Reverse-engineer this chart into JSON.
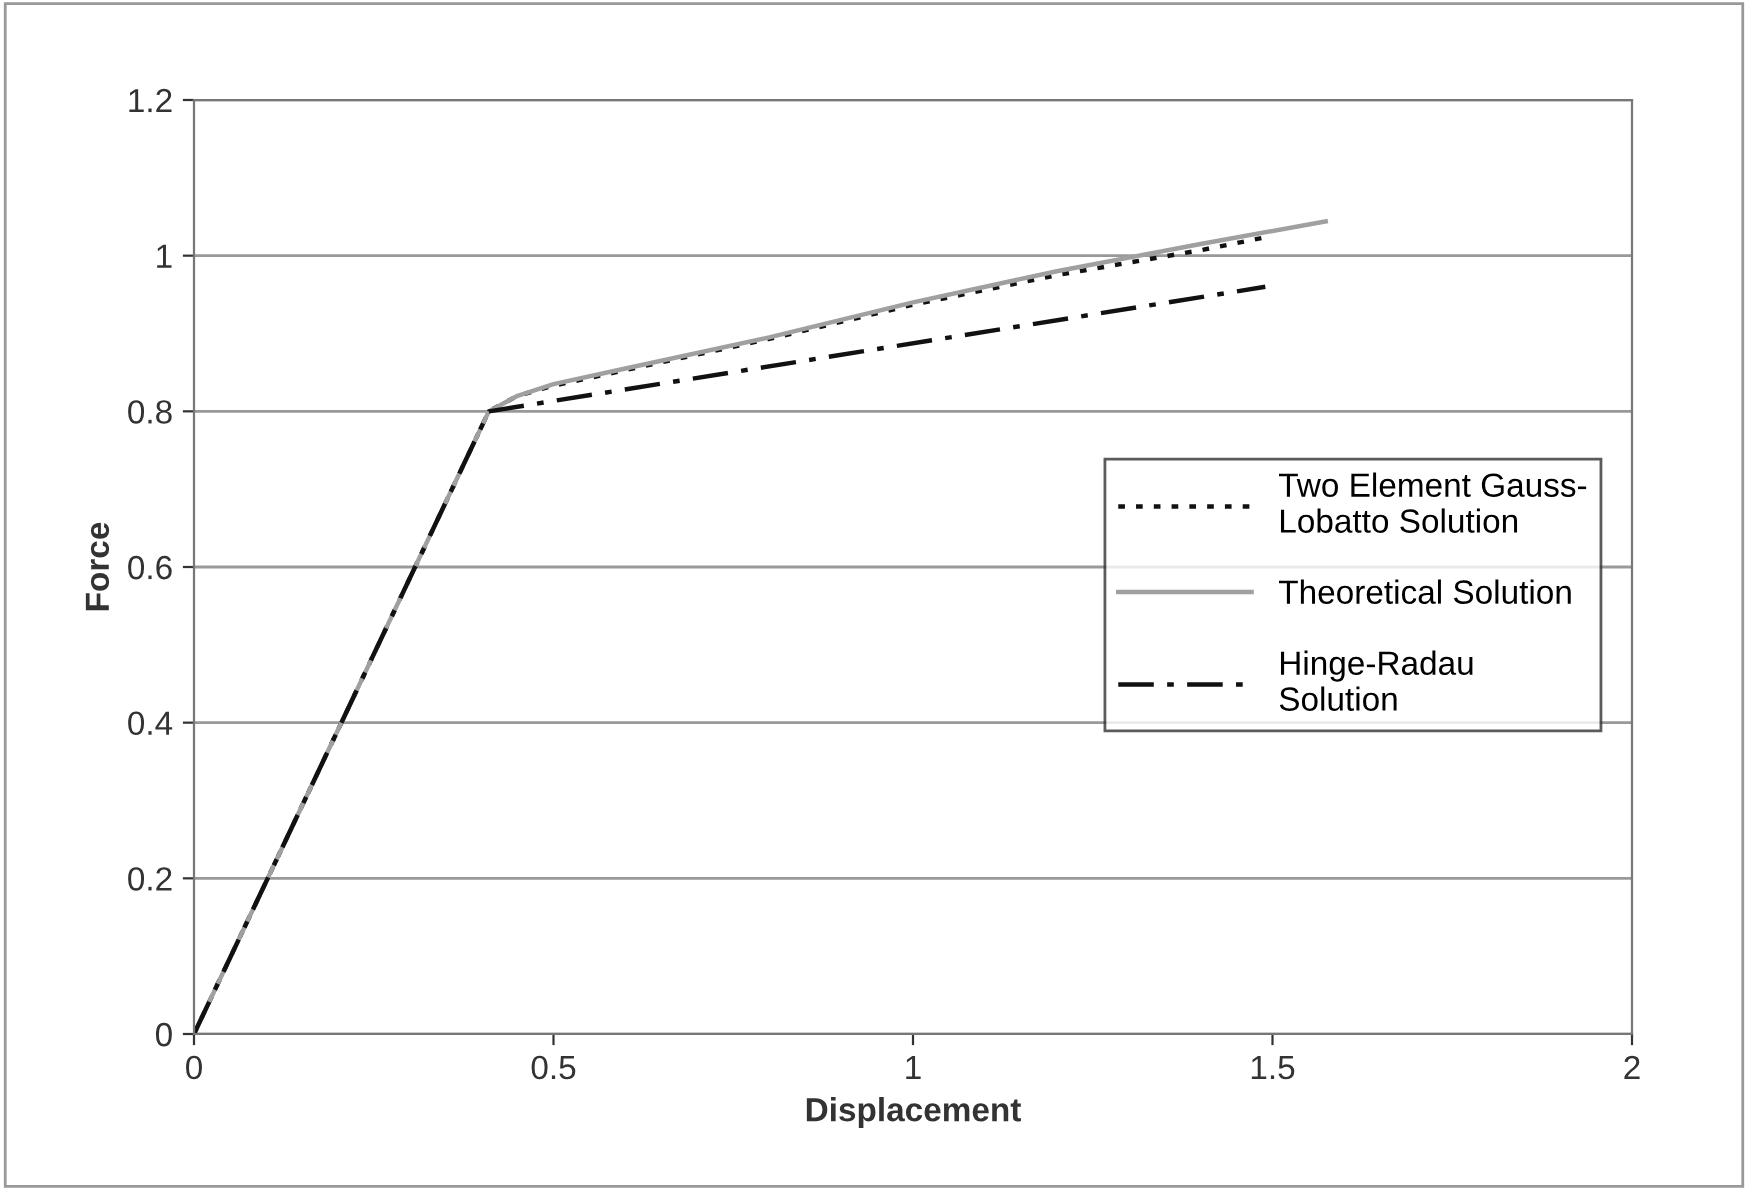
{
  "chart_data": {
    "type": "line",
    "xlabel": "Displacement",
    "ylabel": "Force",
    "xlim": [
      0,
      2
    ],
    "xticks": [
      0,
      0.5,
      1,
      1.5,
      2
    ],
    "ylim": [
      0,
      1.2
    ],
    "yticks": [
      0,
      0.2,
      0.4,
      0.6,
      0.8,
      1,
      1.2
    ],
    "grid": "y",
    "legend": "right",
    "marker": "none",
    "series": [
      {
        "name": "Two Element Gauss-\nLobatto Solution",
        "color": "#111111",
        "line_style": "dotted",
        "x": [
          0,
          0.41,
          0.45,
          0.5,
          0.6,
          0.8,
          1.0,
          1.2,
          1.4,
          1.487
        ],
        "values": [
          0,
          0.8,
          0.82,
          0.833,
          0.853,
          0.893,
          0.937,
          0.975,
          1.007,
          1.023
        ]
      },
      {
        "name": "Theoretical Solution",
        "color": "#a0a0a0",
        "line_style": "solid",
        "x": [
          0,
          0.41,
          0.45,
          0.5,
          0.6,
          0.8,
          1.0,
          1.2,
          1.4,
          1.574
        ],
        "values": [
          0,
          0.8,
          0.82,
          0.835,
          0.855,
          0.895,
          0.94,
          0.98,
          1.015,
          1.044
        ]
      },
      {
        "name": "Hinge-Radau\nSolution",
        "color": "#111111",
        "line_style": "dashdot",
        "x": [
          0,
          0.41,
          1.49
        ],
        "values": [
          0,
          0.8,
          0.96
        ]
      }
    ]
  }
}
